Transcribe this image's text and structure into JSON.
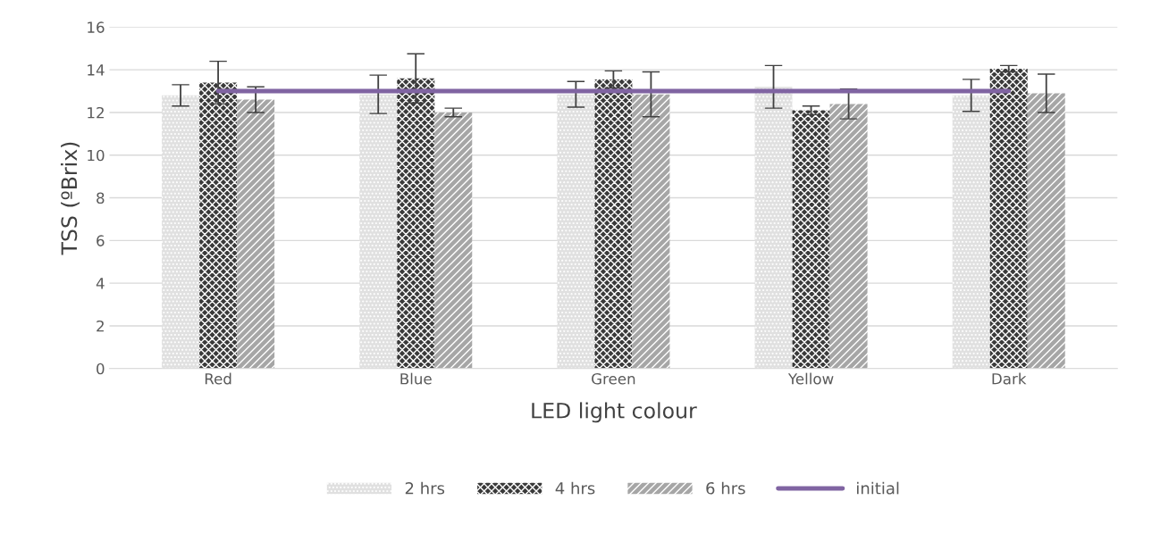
{
  "chart_data": {
    "type": "bar",
    "xlabel": "LED light colour",
    "ylabel": "TSS (ºBrix)",
    "categories": [
      "Red",
      "Blue",
      "Green",
      "Yellow",
      "Dark"
    ],
    "series": [
      {
        "name": "2 hrs",
        "color": "#e0e0e0",
        "values": [
          12.8,
          12.85,
          12.85,
          13.2,
          12.8
        ],
        "errors": [
          0.5,
          0.9,
          0.6,
          1.0,
          0.75
        ]
      },
      {
        "name": "4 hrs",
        "color": "#3a3a3a",
        "values": [
          13.4,
          13.6,
          13.55,
          12.1,
          14.05
        ],
        "errors": [
          1.0,
          1.15,
          0.4,
          0.2,
          0.15
        ]
      },
      {
        "name": "6 hrs",
        "color": "#a6a6a6",
        "values": [
          12.6,
          12.0,
          12.85,
          12.4,
          12.9
        ],
        "errors": [
          0.6,
          0.2,
          1.05,
          0.7,
          0.9
        ]
      },
      {
        "name": "initial",
        "type": "line",
        "color": "#8064a2",
        "values": [
          13,
          13,
          13,
          13,
          13
        ]
      }
    ],
    "ylim": [
      0,
      16
    ],
    "yticks": [
      0,
      2,
      4,
      6,
      8,
      10,
      12,
      14,
      16
    ],
    "grid": "y",
    "legend": "bottom"
  }
}
